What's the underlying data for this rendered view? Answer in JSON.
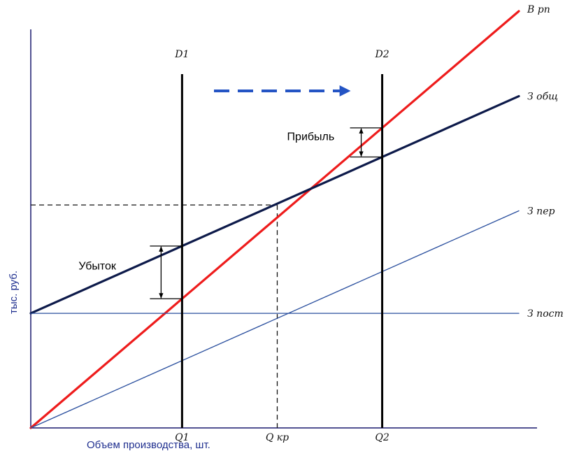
{
  "chart_data": {
    "type": "line",
    "title": "",
    "xlabel": "Объем производства, шт.",
    "ylabel": "тыс. руб.",
    "xlim": [
      0,
      100
    ],
    "ylim": [
      0,
      100
    ],
    "grid": false,
    "series": [
      {
        "name": "В рп",
        "color": "#ee1c1c",
        "width": 3.2,
        "intercept": 0,
        "slope": 1.0
      },
      {
        "name": "З общ",
        "color": "#0d1a4a",
        "width": 3.2,
        "intercept": 27.5,
        "slope": 0.521
      },
      {
        "name": "З пер",
        "color": "#2a4f9e",
        "width": 1.3,
        "intercept": 0,
        "slope": 0.521
      },
      {
        "name": "З пост",
        "color": "#2a4f9e",
        "width": 1.3,
        "intercept": 27.5,
        "slope": 0
      }
    ],
    "vertical_lines": [
      {
        "top_label": "D1",
        "bottom_label": "Q1",
        "x": 31
      },
      {
        "top_label": "D2",
        "bottom_label": "Q2",
        "x": 72
      }
    ],
    "breakeven": {
      "label": "Q кр",
      "x": 50.5,
      "y": 53.5
    },
    "annotations": {
      "loss": {
        "label": "Убыток",
        "x": 31
      },
      "profit": {
        "label": "Прибыль",
        "x": 72
      }
    },
    "shift_arrow_color": "#2454c4"
  }
}
